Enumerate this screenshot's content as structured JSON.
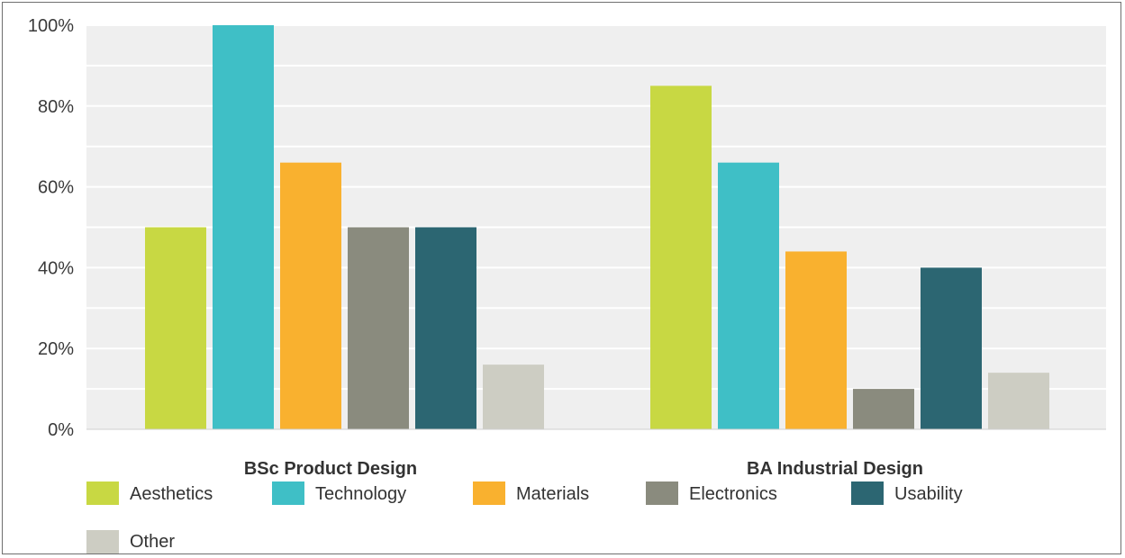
{
  "chart_data": {
    "type": "bar",
    "title": "",
    "xlabel": "",
    "ylabel": "",
    "ylim": [
      0,
      100
    ],
    "yticks": [
      "0%",
      "20%",
      "40%",
      "60%",
      "80%",
      "100%"
    ],
    "grid": true,
    "legend_position": "bottom",
    "categories": [
      "BSc Product Design",
      "BA Industrial Design"
    ],
    "series": [
      {
        "name": "Aesthetics",
        "color": "#c8d843",
        "values": [
          50,
          85
        ]
      },
      {
        "name": "Technology",
        "color": "#3fbfc6",
        "values": [
          100,
          66
        ]
      },
      {
        "name": "Materials",
        "color": "#f9b12f",
        "values": [
          66,
          44
        ]
      },
      {
        "name": "Electronics",
        "color": "#8a8b7e",
        "values": [
          50,
          10
        ]
      },
      {
        "name": "Usability",
        "color": "#2c6672",
        "values": [
          50,
          40
        ]
      },
      {
        "name": "Other",
        "color": "#cdcdc3",
        "values": [
          16,
          14
        ]
      }
    ]
  }
}
